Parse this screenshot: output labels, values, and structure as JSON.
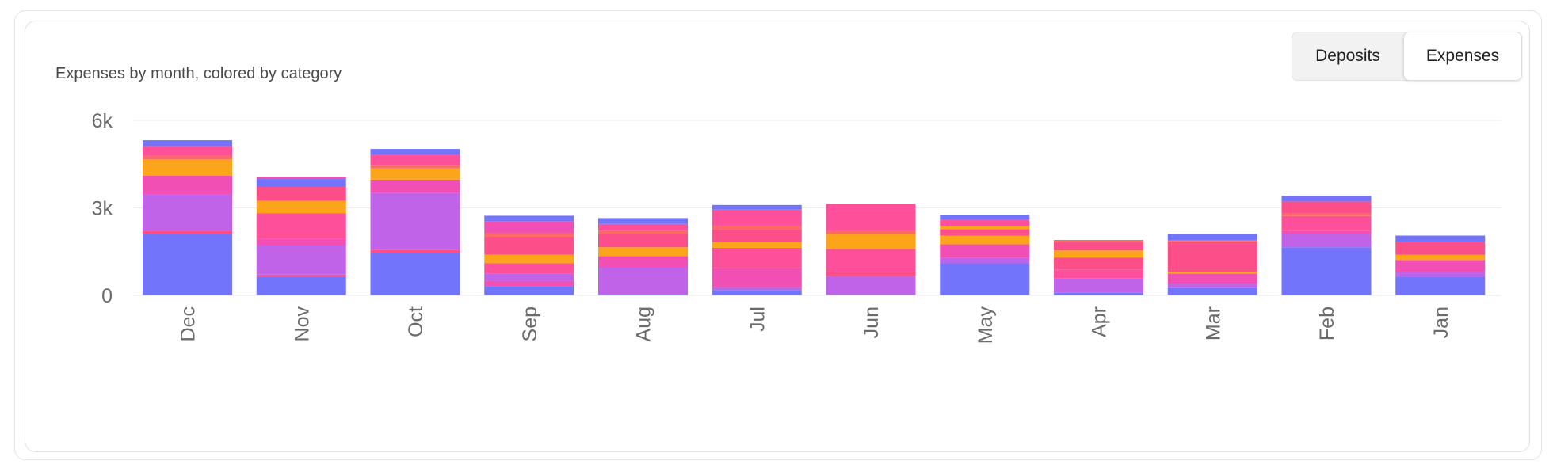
{
  "toggle": {
    "deposits_label": "Deposits",
    "expenses_label": "Expenses",
    "selected": "Expenses"
  },
  "chart_data": {
    "type": "bar",
    "stacked": true,
    "title": "Expenses by month, colored by category",
    "xlabel": "",
    "ylabel": "",
    "ylim": [
      0,
      6000
    ],
    "yticks": [
      0,
      3000,
      6000
    ],
    "ytick_labels": [
      "0",
      "3k",
      "6k"
    ],
    "grid": true,
    "categories": [
      "Dec",
      "Nov",
      "Oct",
      "Sep",
      "Aug",
      "Jul",
      "Jun",
      "May",
      "Apr",
      "Mar",
      "Feb",
      "Jan"
    ],
    "colors": {
      "blue": "#7275fc",
      "purple": "#c063e8",
      "orchid": "#e85bc4",
      "magenta": "#f24fb4",
      "rose": "#fc4f8a",
      "coral": "#fd6a64",
      "orange": "#fda51a",
      "pink": "#fd4f9a"
    },
    "stacks": [
      [
        [
          "blue",
          2100
        ],
        [
          "rose",
          100
        ],
        [
          "purple",
          1250
        ],
        [
          "magenta",
          650
        ],
        [
          "orange",
          570
        ],
        [
          "coral",
          120
        ],
        [
          "pink",
          330
        ],
        [
          "blue",
          200
        ]
      ],
      [
        [
          "blue",
          650
        ],
        [
          "rose",
          60
        ],
        [
          "purple",
          1000
        ],
        [
          "magenta",
          220
        ],
        [
          "pink",
          880
        ],
        [
          "orange",
          430
        ],
        [
          "rose",
          480
        ],
        [
          "blue",
          270
        ],
        [
          "magenta",
          60
        ]
      ],
      [
        [
          "blue",
          1450
        ],
        [
          "rose",
          120
        ],
        [
          "purple",
          1950
        ],
        [
          "magenta",
          450
        ],
        [
          "orange",
          380
        ],
        [
          "coral",
          120
        ],
        [
          "pink",
          350
        ],
        [
          "blue",
          200
        ]
      ],
      [
        [
          "blue",
          300
        ],
        [
          "magenta",
          200
        ],
        [
          "purple",
          250
        ],
        [
          "pink",
          350
        ],
        [
          "orange",
          300
        ],
        [
          "rose",
          610
        ],
        [
          "coral",
          120
        ],
        [
          "magenta",
          400
        ],
        [
          "blue",
          200
        ]
      ],
      [
        [
          "blue",
          50
        ],
        [
          "purple",
          900
        ],
        [
          "magenta",
          400
        ],
        [
          "orange",
          300
        ],
        [
          "rose",
          450
        ],
        [
          "coral",
          120
        ],
        [
          "pink",
          230
        ],
        [
          "blue",
          200
        ]
      ],
      [
        [
          "blue",
          180
        ],
        [
          "purple",
          100
        ],
        [
          "magenta",
          650
        ],
        [
          "pink",
          700
        ],
        [
          "orange",
          200
        ],
        [
          "rose",
          440
        ],
        [
          "coral",
          120
        ],
        [
          "pink",
          550
        ],
        [
          "blue",
          160
        ]
      ],
      [
        [
          "blue",
          20
        ],
        [
          "purple",
          640
        ],
        [
          "rose",
          130
        ],
        [
          "pink",
          800
        ],
        [
          "orange",
          500
        ],
        [
          "coral",
          120
        ],
        [
          "pink",
          930
        ]
      ],
      [
        [
          "blue",
          1100
        ],
        [
          "purple",
          200
        ],
        [
          "magenta",
          450
        ],
        [
          "orange",
          300
        ],
        [
          "rose",
          220
        ],
        [
          "orange",
          120
        ],
        [
          "pink",
          200
        ],
        [
          "blue",
          180
        ]
      ],
      [
        [
          "blue",
          90
        ],
        [
          "purple",
          500
        ],
        [
          "pink",
          300
        ],
        [
          "rose",
          400
        ],
        [
          "orange",
          250
        ],
        [
          "rose",
          300
        ],
        [
          "coral",
          60
        ]
      ],
      [
        [
          "blue",
          250
        ],
        [
          "purple",
          150
        ],
        [
          "magenta",
          350
        ],
        [
          "orange",
          60
        ],
        [
          "rose",
          1040
        ],
        [
          "coral",
          50
        ],
        [
          "blue",
          200
        ]
      ],
      [
        [
          "blue",
          1650
        ],
        [
          "purple",
          450
        ],
        [
          "magenta",
          120
        ],
        [
          "pink",
          500
        ],
        [
          "coral",
          80
        ],
        [
          "rose",
          420
        ],
        [
          "blue",
          190
        ]
      ],
      [
        [
          "blue",
          640
        ],
        [
          "purple",
          150
        ],
        [
          "magenta",
          420
        ],
        [
          "orange",
          180
        ],
        [
          "rose",
          440
        ],
        [
          "blue",
          220
        ]
      ]
    ]
  }
}
